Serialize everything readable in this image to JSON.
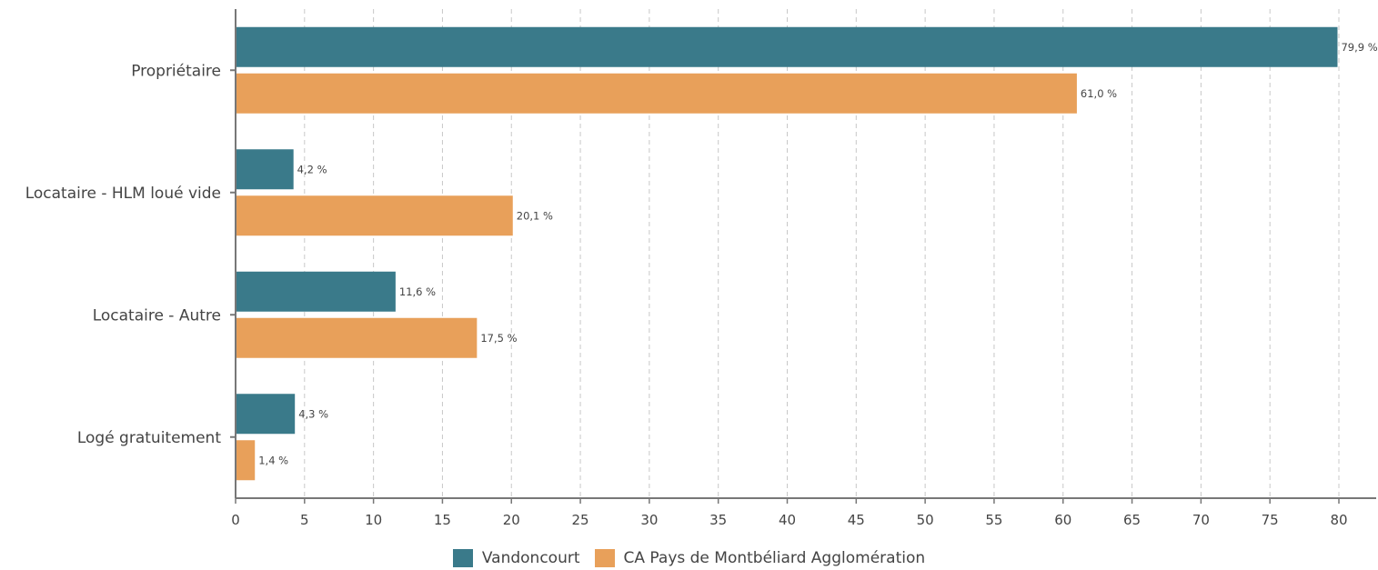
{
  "chart_data": {
    "type": "bar",
    "orientation": "horizontal",
    "categories": [
      "Propriétaire",
      "Locataire - HLM loué vide",
      "Locataire - Autre",
      "Logé gratuitement"
    ],
    "series": [
      {
        "name": "Vandoncourt",
        "color": "#3a7a8a",
        "values": [
          79.9,
          4.2,
          11.6,
          4.3
        ],
        "labels": [
          "79,9 %",
          "4,2 %",
          "11,6 %",
          "4,3 %"
        ]
      },
      {
        "name": "CA Pays de Montbéliard Agglomération",
        "color": "#e8a05a",
        "values": [
          61.0,
          20.1,
          17.5,
          1.4
        ],
        "labels": [
          "61,0 %",
          "20,1 %",
          "17,5 %",
          "1,4 %"
        ]
      }
    ],
    "xlim": [
      0,
      80
    ],
    "xticks": [
      "0",
      "5",
      "10",
      "15",
      "20",
      "25",
      "30",
      "35",
      "40",
      "45",
      "50",
      "55",
      "60",
      "65",
      "70",
      "75",
      "80"
    ],
    "grid": true,
    "legend_position": "bottom"
  }
}
